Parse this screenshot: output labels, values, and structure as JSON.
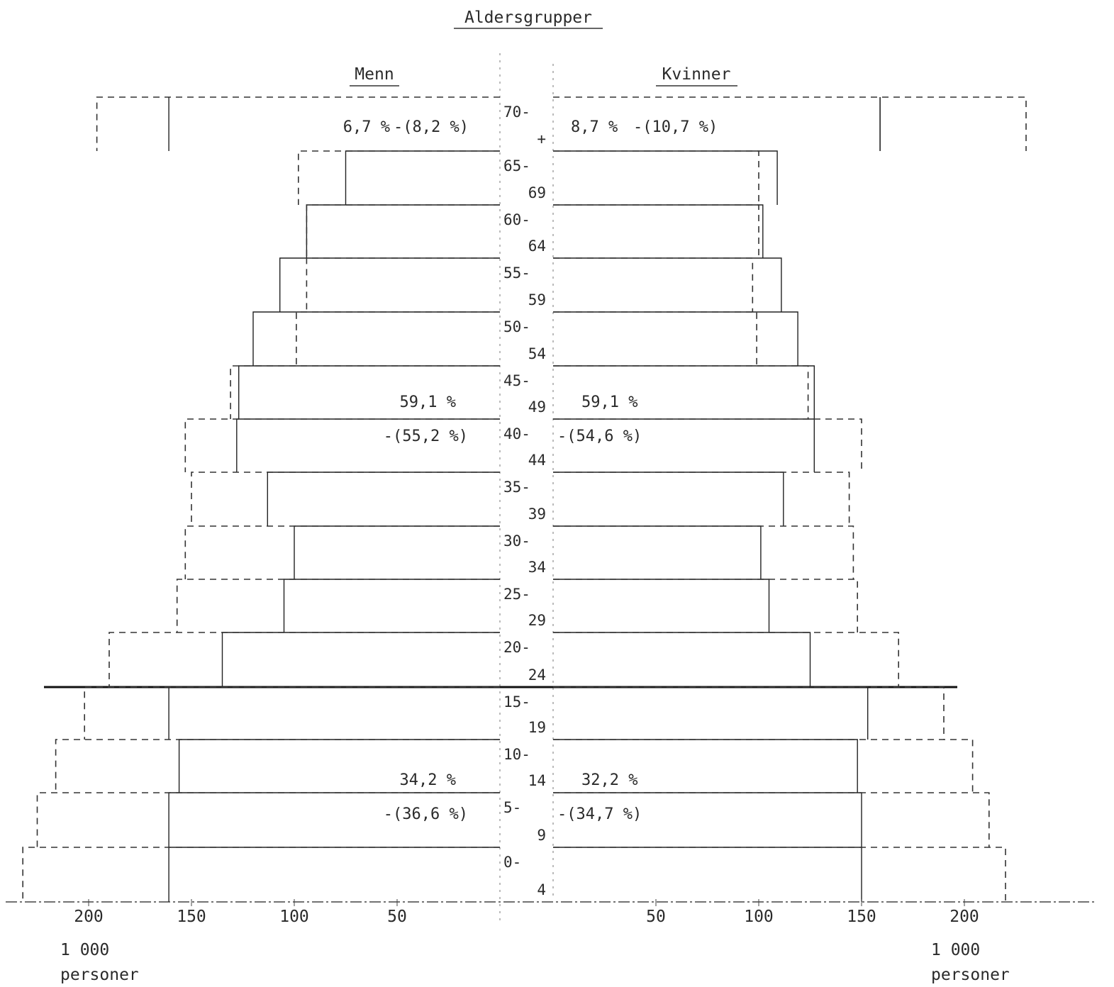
{
  "chart_data": {
    "type": "bar",
    "subtype": "population-pyramid",
    "title": "Aldersgrupper",
    "left_heading": "Menn",
    "right_heading": "Kvinner",
    "unit_left": [
      "1 000",
      "personer"
    ],
    "unit_right": [
      "1 000",
      "personer"
    ],
    "x_ticks_left": [
      "200",
      "150",
      "100",
      "50"
    ],
    "x_ticks_right": [
      "50",
      "100",
      "150",
      "200"
    ],
    "tick_values": [
      200,
      150,
      100,
      50
    ],
    "xlim": [
      0,
      230
    ],
    "age_groups": [
      [
        "0-",
        "4"
      ],
      [
        "5-",
        "9"
      ],
      [
        "10-",
        "14"
      ],
      [
        "15-",
        "19"
      ],
      [
        "20-",
        "24"
      ],
      [
        "25-",
        "29"
      ],
      [
        "30-",
        "34"
      ],
      [
        "35-",
        "39"
      ],
      [
        "40-",
        "44"
      ],
      [
        "45-",
        "49"
      ],
      [
        "50-",
        "54"
      ],
      [
        "55-",
        "59"
      ],
      [
        "60-",
        "64"
      ],
      [
        "65-",
        "69"
      ],
      [
        "70-",
        "+"
      ]
    ],
    "series": [
      {
        "style": "solid",
        "men": [
          161,
          161,
          156,
          161,
          135,
          105,
          100,
          113,
          128,
          127,
          120,
          107,
          94,
          75,
          161
        ],
        "women": [
          150,
          150,
          148,
          153,
          125,
          105,
          101,
          112,
          127,
          127,
          119,
          111,
          102,
          109,
          159
        ]
      },
      {
        "style": "dashed",
        "men": [
          232,
          225,
          216,
          202,
          190,
          157,
          153,
          150,
          153,
          131,
          99,
          94,
          94,
          98,
          196
        ],
        "women": [
          220,
          212,
          204,
          190,
          168,
          148,
          146,
          144,
          150,
          124,
          99,
          97,
          100,
          100,
          230
        ]
      }
    ],
    "annotations": {
      "old": {
        "men": "6,7 %",
        "men_alt": "-(8,2 %)",
        "women": "8,7 %",
        "women_alt": "-(10,7 %)"
      },
      "working": {
        "men": "59,1 %",
        "men_alt": "-(55,2 %)",
        "women": "59,1 %",
        "women_alt": "-(54,6 %)"
      },
      "young": {
        "men": "34,2 %",
        "men_alt": "-(36,6 %)",
        "women": "32,2 %",
        "women_alt": "-(34,7 %)"
      }
    }
  }
}
